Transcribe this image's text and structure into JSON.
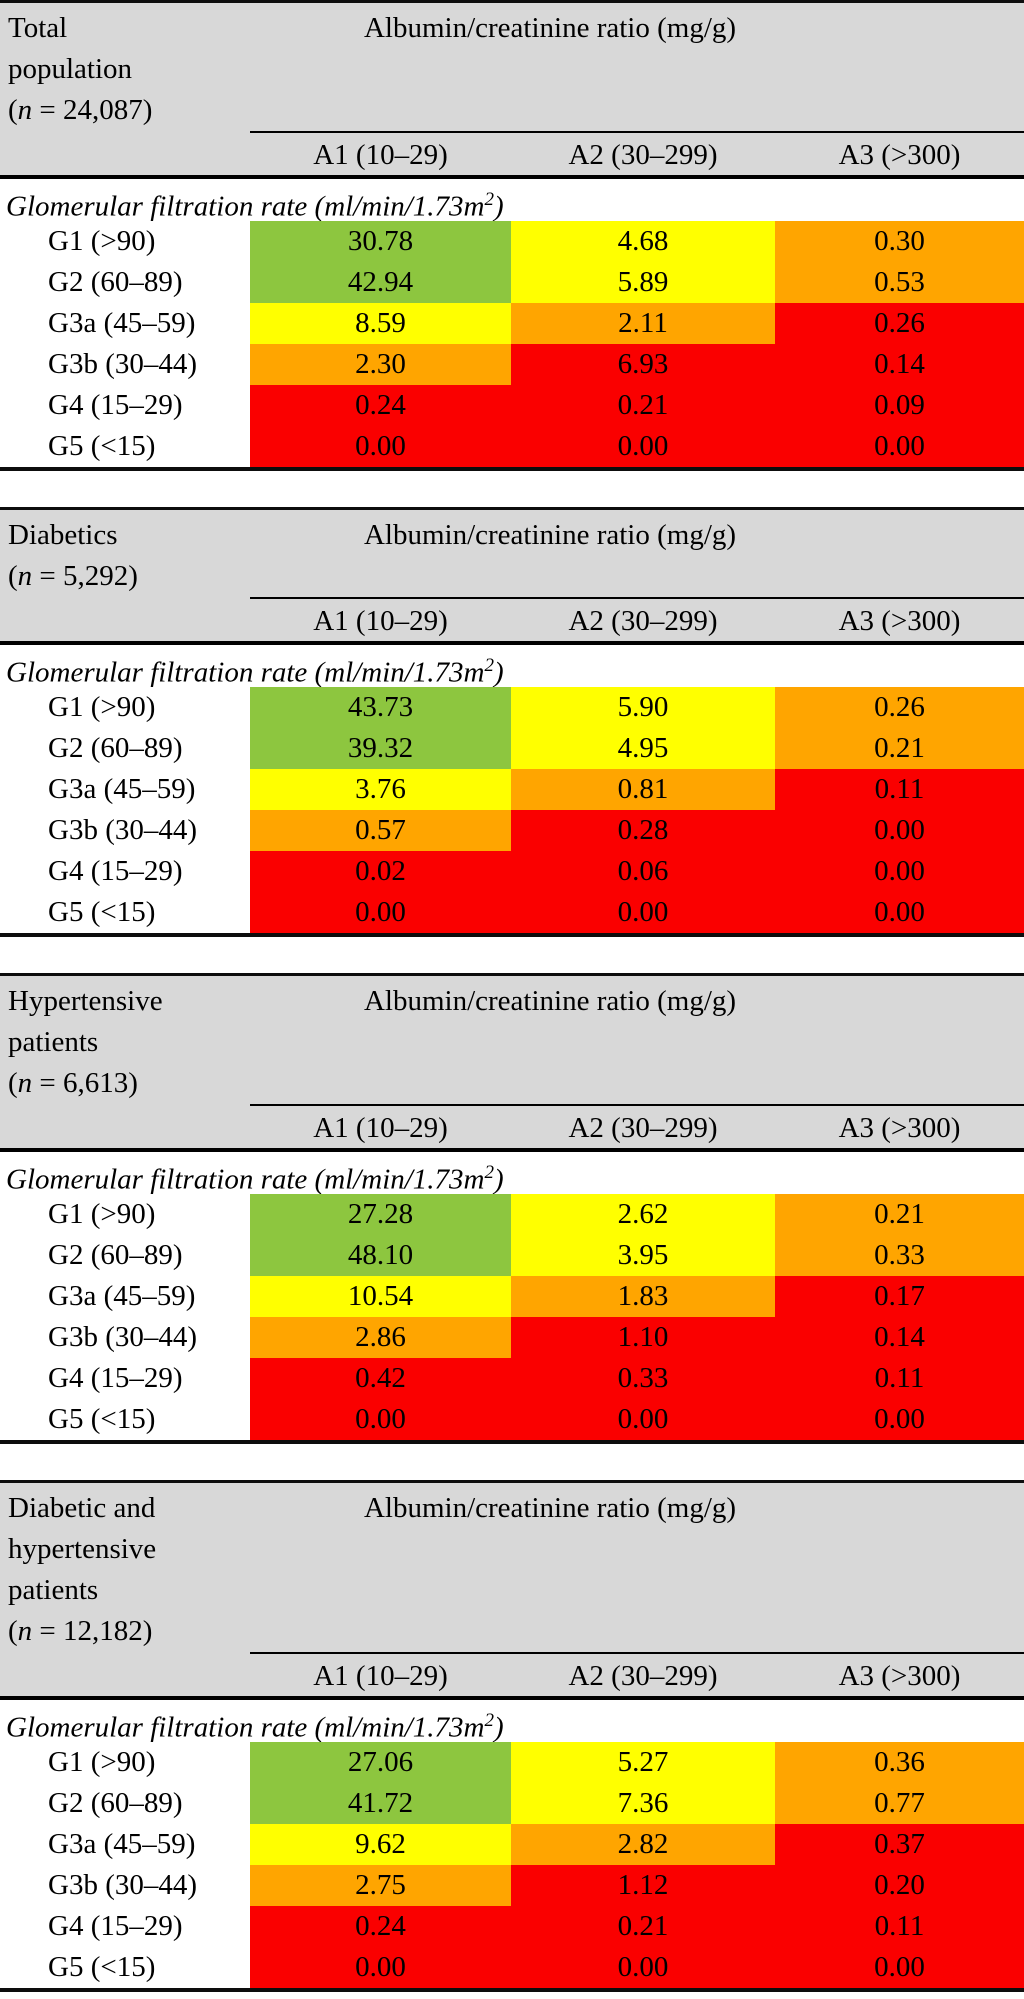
{
  "figure": {
    "colors": {
      "green": "#8DC63F",
      "yellow": "#FFFF00",
      "orange": "#FFA500",
      "red": "#FA0000",
      "band_gray": "#D8D8D8",
      "border_black": "#0D0D0D"
    },
    "shared": {
      "acr_header": "Albumin/creatinine ratio (mg/g)",
      "columns": [
        "A1 (10–29)",
        "A2 (30–299)",
        "A3 (>300)"
      ],
      "gfr_label": {
        "base": "Glomerular filtration rate (ml/min/1.73m",
        "sup": "2",
        "close": ")"
      }
    },
    "tables": [
      {
        "title_lines": [
          "Total",
          "population"
        ],
        "count": {
          "prefix": "(",
          "n": "n",
          "suffix": " = 24,087)"
        },
        "rows": [
          {
            "label": "G1 (>90)",
            "values": [
              "30.78",
              "4.68",
              "0.30"
            ],
            "colors": [
              "green",
              "yellow",
              "orange"
            ]
          },
          {
            "label": "G2 (60–89)",
            "values": [
              "42.94",
              "5.89",
              "0.53"
            ],
            "colors": [
              "green",
              "yellow",
              "orange"
            ]
          },
          {
            "label": "G3a (45–59)",
            "values": [
              "8.59",
              "2.11",
              "0.26"
            ],
            "colors": [
              "yellow",
              "orange",
              "red"
            ]
          },
          {
            "label": "G3b (30–44)",
            "values": [
              "2.30",
              "6.93",
              "0.14"
            ],
            "colors": [
              "orange",
              "red",
              "red"
            ]
          },
          {
            "label": "G4 (15–29)",
            "values": [
              "0.24",
              "0.21",
              "0.09"
            ],
            "colors": [
              "red",
              "red",
              "red"
            ]
          },
          {
            "label": "G5 (<15)",
            "values": [
              "0.00",
              "0.00",
              "0.00"
            ],
            "colors": [
              "red",
              "red",
              "red"
            ]
          }
        ]
      },
      {
        "title_lines": [
          "Diabetics"
        ],
        "count": {
          "prefix": "(",
          "n": "n",
          "suffix": " = 5,292)"
        },
        "rows": [
          {
            "label": "G1 (>90)",
            "values": [
              "43.73",
              "5.90",
              "0.26"
            ],
            "colors": [
              "green",
              "yellow",
              "orange"
            ]
          },
          {
            "label": "G2 (60–89)",
            "values": [
              "39.32",
              "4.95",
              "0.21"
            ],
            "colors": [
              "green",
              "yellow",
              "orange"
            ]
          },
          {
            "label": "G3a (45–59)",
            "values": [
              "3.76",
              "0.81",
              "0.11"
            ],
            "colors": [
              "yellow",
              "orange",
              "red"
            ]
          },
          {
            "label": "G3b (30–44)",
            "values": [
              "0.57",
              "0.28",
              "0.00"
            ],
            "colors": [
              "orange",
              "red",
              "red"
            ]
          },
          {
            "label": "G4 (15–29)",
            "values": [
              "0.02",
              "0.06",
              "0.00"
            ],
            "colors": [
              "red",
              "red",
              "red"
            ]
          },
          {
            "label": "G5 (<15)",
            "values": [
              "0.00",
              "0.00",
              "0.00"
            ],
            "colors": [
              "red",
              "red",
              "red"
            ]
          }
        ]
      },
      {
        "title_lines": [
          "Hypertensive",
          "patients"
        ],
        "count": {
          "prefix": "(",
          "n": "n",
          "suffix": " = 6,613)"
        },
        "rows": [
          {
            "label": "G1 (>90)",
            "values": [
              "27.28",
              "2.62",
              "0.21"
            ],
            "colors": [
              "green",
              "yellow",
              "orange"
            ]
          },
          {
            "label": "G2 (60–89)",
            "values": [
              "48.10",
              "3.95",
              "0.33"
            ],
            "colors": [
              "green",
              "yellow",
              "orange"
            ]
          },
          {
            "label": "G3a (45–59)",
            "values": [
              "10.54",
              "1.83",
              "0.17"
            ],
            "colors": [
              "yellow",
              "orange",
              "red"
            ]
          },
          {
            "label": "G3b (30–44)",
            "values": [
              "2.86",
              "1.10",
              "0.14"
            ],
            "colors": [
              "orange",
              "red",
              "red"
            ]
          },
          {
            "label": "G4 (15–29)",
            "values": [
              "0.42",
              "0.33",
              "0.11"
            ],
            "colors": [
              "red",
              "red",
              "red"
            ]
          },
          {
            "label": "G5 (<15)",
            "values": [
              "0.00",
              "0.00",
              "0.00"
            ],
            "colors": [
              "red",
              "red",
              "red"
            ]
          }
        ]
      },
      {
        "title_lines": [
          "Diabetic and",
          "hypertensive",
          "patients"
        ],
        "count": {
          "prefix": "(",
          "n": "n",
          "suffix": " = 12,182)"
        },
        "rows": [
          {
            "label": "G1 (>90)",
            "values": [
              "27.06",
              "5.27",
              "0.36"
            ],
            "colors": [
              "green",
              "yellow",
              "orange"
            ]
          },
          {
            "label": "G2 (60–89)",
            "values": [
              "41.72",
              "7.36",
              "0.77"
            ],
            "colors": [
              "green",
              "yellow",
              "orange"
            ]
          },
          {
            "label": "G3a (45–59)",
            "values": [
              "9.62",
              "2.82",
              "0.37"
            ],
            "colors": [
              "yellow",
              "orange",
              "red"
            ]
          },
          {
            "label": "G3b (30–44)",
            "values": [
              "2.75",
              "1.12",
              "0.20"
            ],
            "colors": [
              "orange",
              "red",
              "red"
            ]
          },
          {
            "label": "G4 (15–29)",
            "values": [
              "0.24",
              "0.21",
              "0.11"
            ],
            "colors": [
              "red",
              "red",
              "red"
            ]
          },
          {
            "label": "G5 (<15)",
            "values": [
              "0.00",
              "0.00",
              "0.00"
            ],
            "colors": [
              "red",
              "red",
              "red"
            ]
          }
        ]
      }
    ]
  },
  "chart_data": [
    {
      "type": "heatmap",
      "title": "Total population (n = 24,087)",
      "xlabel": "Albumin/creatinine ratio (mg/g)",
      "ylabel": "Glomerular filtration rate (ml/min/1.73m2)",
      "columns": [
        "A1 (10–29)",
        "A2 (30–299)",
        "A3 (>300)"
      ],
      "rows": [
        "G1 (>90)",
        "G2 (60–89)",
        "G3a (45–59)",
        "G3b (30–44)",
        "G4 (15–29)",
        "G5 (<15)"
      ],
      "values": [
        [
          30.78,
          4.68,
          0.3
        ],
        [
          42.94,
          5.89,
          0.53
        ],
        [
          8.59,
          2.11,
          0.26
        ],
        [
          2.3,
          6.93,
          0.14
        ],
        [
          0.24,
          0.21,
          0.09
        ],
        [
          0.0,
          0.0,
          0.0
        ]
      ],
      "cell_colors": [
        [
          "green",
          "yellow",
          "orange"
        ],
        [
          "green",
          "yellow",
          "orange"
        ],
        [
          "yellow",
          "orange",
          "red"
        ],
        [
          "orange",
          "red",
          "red"
        ],
        [
          "red",
          "red",
          "red"
        ],
        [
          "red",
          "red",
          "red"
        ]
      ]
    },
    {
      "type": "heatmap",
      "title": "Diabetics (n = 5,292)",
      "xlabel": "Albumin/creatinine ratio (mg/g)",
      "ylabel": "Glomerular filtration rate (ml/min/1.73m2)",
      "columns": [
        "A1 (10–29)",
        "A2 (30–299)",
        "A3 (>300)"
      ],
      "rows": [
        "G1 (>90)",
        "G2 (60–89)",
        "G3a (45–59)",
        "G3b (30–44)",
        "G4 (15–29)",
        "G5 (<15)"
      ],
      "values": [
        [
          43.73,
          5.9,
          0.26
        ],
        [
          39.32,
          4.95,
          0.21
        ],
        [
          3.76,
          0.81,
          0.11
        ],
        [
          0.57,
          0.28,
          0.0
        ],
        [
          0.02,
          0.06,
          0.0
        ],
        [
          0.0,
          0.0,
          0.0
        ]
      ],
      "cell_colors": [
        [
          "green",
          "yellow",
          "orange"
        ],
        [
          "green",
          "yellow",
          "orange"
        ],
        [
          "yellow",
          "orange",
          "red"
        ],
        [
          "orange",
          "red",
          "red"
        ],
        [
          "red",
          "red",
          "red"
        ],
        [
          "red",
          "red",
          "red"
        ]
      ]
    },
    {
      "type": "heatmap",
      "title": "Hypertensive patients (n = 6,613)",
      "xlabel": "Albumin/creatinine ratio (mg/g)",
      "ylabel": "Glomerular filtration rate (ml/min/1.73m2)",
      "columns": [
        "A1 (10–29)",
        "A2 (30–299)",
        "A3 (>300)"
      ],
      "rows": [
        "G1 (>90)",
        "G2 (60–89)",
        "G3a (45–59)",
        "G3b (30–44)",
        "G4 (15–29)",
        "G5 (<15)"
      ],
      "values": [
        [
          27.28,
          2.62,
          0.21
        ],
        [
          48.1,
          3.95,
          0.33
        ],
        [
          10.54,
          1.83,
          0.17
        ],
        [
          2.86,
          1.1,
          0.14
        ],
        [
          0.42,
          0.33,
          0.11
        ],
        [
          0.0,
          0.0,
          0.0
        ]
      ],
      "cell_colors": [
        [
          "green",
          "yellow",
          "orange"
        ],
        [
          "green",
          "yellow",
          "orange"
        ],
        [
          "yellow",
          "orange",
          "red"
        ],
        [
          "orange",
          "red",
          "red"
        ],
        [
          "red",
          "red",
          "red"
        ],
        [
          "red",
          "red",
          "red"
        ]
      ]
    },
    {
      "type": "heatmap",
      "title": "Diabetic and hypertensive patients (n = 12,182)",
      "xlabel": "Albumin/creatinine ratio (mg/g)",
      "ylabel": "Glomerular filtration rate (ml/min/1.73m2)",
      "columns": [
        "A1 (10–29)",
        "A2 (30–299)",
        "A3 (>300)"
      ],
      "rows": [
        "G1 (>90)",
        "G2 (60–89)",
        "G3a (45–59)",
        "G3b (30–44)",
        "G4 (15–29)",
        "G5 (<15)"
      ],
      "values": [
        [
          27.06,
          5.27,
          0.36
        ],
        [
          41.72,
          7.36,
          0.77
        ],
        [
          9.62,
          2.82,
          0.37
        ],
        [
          2.75,
          1.12,
          0.2
        ],
        [
          0.24,
          0.21,
          0.11
        ],
        [
          0.0,
          0.0,
          0.0
        ]
      ],
      "cell_colors": [
        [
          "green",
          "yellow",
          "orange"
        ],
        [
          "green",
          "yellow",
          "orange"
        ],
        [
          "yellow",
          "orange",
          "red"
        ],
        [
          "orange",
          "red",
          "red"
        ],
        [
          "red",
          "red",
          "red"
        ],
        [
          "red",
          "red",
          "red"
        ]
      ]
    }
  ]
}
